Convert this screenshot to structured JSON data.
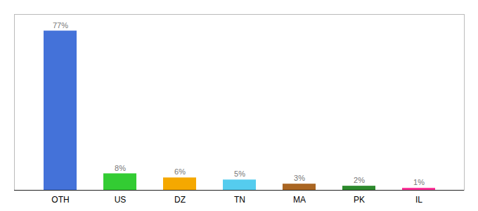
{
  "chart_data": {
    "type": "bar",
    "categories": [
      "OTH",
      "US",
      "DZ",
      "TN",
      "MA",
      "PK",
      "IL"
    ],
    "values": [
      77,
      8,
      6,
      5,
      3,
      2,
      1
    ],
    "value_labels": [
      "77%",
      "8%",
      "6%",
      "5%",
      "3%",
      "2%",
      "1%"
    ],
    "colors": [
      "#4472d9",
      "#33cc33",
      "#f5a800",
      "#55ccee",
      "#aa6622",
      "#2d8a2d",
      "#ff3399"
    ],
    "ylim": [
      0,
      85
    ],
    "data_labels": true,
    "tick_labels": "x"
  }
}
